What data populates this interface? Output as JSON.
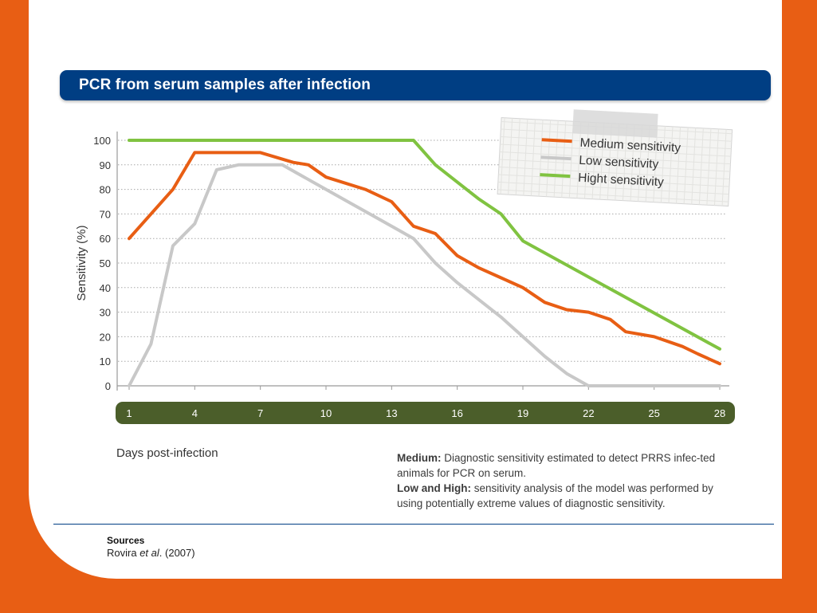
{
  "title": "PCR from serum samples after infection",
  "x_axis_caption": "Days post-infection",
  "notes": {
    "medium_bold": "Medium:",
    "medium_text": "Diagnostic sensitivity estimated to detect PRRS infec-ted animals for PCR on serum.",
    "lowhigh_bold": "Low and High:",
    "lowhigh_text": "sensitivity analysis of the model was performed by using potentially extreme values of diagnostic sensitivity."
  },
  "sources": {
    "heading": "Sources",
    "author": "Rovira",
    "etal": "et al",
    "year": ". (2007)"
  },
  "colors": {
    "background": "#e85e14",
    "title_bar": "#003e83",
    "x_axis_bar": "#4b5e2a",
    "medium": "#e85e14",
    "low": "#c8c8c8",
    "high": "#80c341"
  },
  "chart_data": {
    "type": "line",
    "ylabel": "Sensitivity (%)",
    "xlabel": "Days post-infection",
    "ylim": [
      0,
      100
    ],
    "xlim": [
      1,
      28
    ],
    "yticks": [
      0,
      10,
      20,
      30,
      40,
      50,
      60,
      70,
      80,
      90,
      100
    ],
    "xticks": [
      1,
      4,
      7,
      10,
      13,
      16,
      19,
      22,
      25,
      28
    ],
    "grid": "horizontal dotted",
    "legend_position": "top-right",
    "series": [
      {
        "name": "Medium sensitivity",
        "color": "#e85e14",
        "x": [
          1,
          3,
          4,
          7,
          8.5,
          9.2,
          10,
          11.8,
          13,
          14,
          15,
          16,
          17,
          18,
          19,
          20,
          21,
          22,
          23,
          23.7,
          25,
          26.3,
          27,
          28
        ],
        "y": [
          60,
          80,
          95,
          95,
          91,
          90,
          85,
          80,
          75,
          65,
          62,
          53,
          48,
          44,
          40,
          34,
          31,
          30,
          27,
          22,
          20,
          16,
          13,
          9
        ]
      },
      {
        "name": "Low sensitivity",
        "color": "#c8c8c8",
        "x": [
          1,
          2,
          3,
          4,
          5,
          6,
          7,
          8,
          9,
          10,
          11,
          12,
          13,
          14,
          15,
          16,
          17,
          18,
          19,
          20,
          21,
          22,
          23,
          24,
          25,
          26,
          27,
          28
        ],
        "y": [
          0,
          17,
          57,
          66,
          88,
          90,
          90,
          90,
          85,
          80,
          75,
          70,
          65,
          60,
          50,
          42,
          35,
          28,
          20,
          12,
          5,
          0,
          0,
          0,
          0,
          0,
          0,
          0
        ]
      },
      {
        "name": "Hight sensitivity",
        "color": "#80c341",
        "x": [
          1,
          14,
          15,
          16,
          17,
          18,
          19,
          28
        ],
        "y": [
          100,
          100,
          90,
          83,
          76,
          70,
          59,
          15
        ]
      }
    ]
  }
}
